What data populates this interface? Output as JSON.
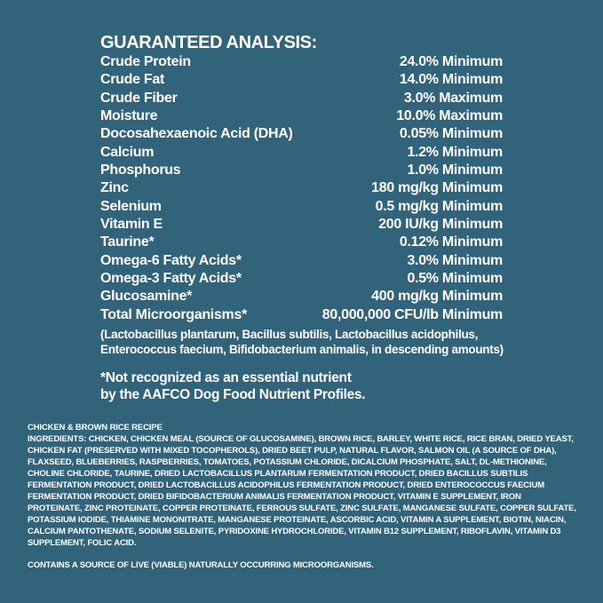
{
  "colors": {
    "background": "#31637a",
    "text": "#ffffff"
  },
  "guaranteed_analysis": {
    "title": "GUARANTEED ANALYSIS:",
    "rows": [
      {
        "label": "Crude Protein",
        "value": "24.0% Minimum"
      },
      {
        "label": "Crude Fat",
        "value": "14.0% Minimum"
      },
      {
        "label": "Crude Fiber",
        "value": "3.0% Maximum"
      },
      {
        "label": "Moisture",
        "value": "10.0% Maximum"
      },
      {
        "label": "Docosahexaenoic Acid (DHA)",
        "value": "0.05% Minimum"
      },
      {
        "label": "Calcium",
        "value": "1.2% Minimum"
      },
      {
        "label": "Phosphorus",
        "value": "1.0% Minimum"
      },
      {
        "label": "Zinc",
        "value": "180 mg/kg Minimum"
      },
      {
        "label": "Selenium",
        "value": "0.5 mg/kg Minimum"
      },
      {
        "label": "Vitamin E",
        "value": "200 IU/kg Minimum"
      },
      {
        "label": "Taurine*",
        "value": "0.12% Minimum"
      },
      {
        "label": "Omega-6 Fatty Acids*",
        "value": "3.0% Minimum"
      },
      {
        "label": "Omega-3 Fatty Acids*",
        "value": "0.5% Minimum"
      },
      {
        "label": "Glucosamine*",
        "value": "400 mg/kg Minimum"
      },
      {
        "label": "Total Microorganisms*",
        "value": "80,000,000 CFU/lb Minimum"
      }
    ],
    "microorganisms_note_lines": [
      "(Lactobacillus plantarum, Bacillus subtilis, Lactobacillus acidophilus,",
      "Enterococcus faecium, Bifidobacterium animalis, in descending amounts)"
    ],
    "footnote_lines": [
      "*Not recognized as an essential nutrient",
      "by the AAFCO Dog Food Nutrient Profiles."
    ]
  },
  "recipe": {
    "name": "CHICKEN & BROWN RICE RECIPE",
    "ingredients_label": "INGREDIENTS:",
    "ingredients": "CHICKEN, CHICKEN MEAL (SOURCE OF GLUCOSAMINE), BROWN RICE, BARLEY, WHITE RICE, RICE BRAN, DRIED YEAST, CHICKEN FAT (PRESERVED WITH MIXED TOCOPHEROLS), DRIED BEET PULP, NATURAL FLAVOR, SALMON OIL (A SOURCE OF DHA), FLAXSEED, BLUEBERRIES, RASPBERRIES, TOMATOES, POTASSIUM CHLORIDE, DICALCIUM PHOSPHATE, SALT, DL-METHIONINE, CHOLINE CHLORIDE, TAURINE, DRIED LACTOBACILLUS PLANTARUM FERMENTATION PRODUCT, DRIED BACILLUS SUBTILIS FERMENTATION PRODUCT, DRIED LACTOBACILLUS ACIDOPHILUS FERMENTATION PRODUCT, DRIED ENTEROCOCCUS FAECIUM FERMENTATION PRODUCT, DRIED BIFIDOBACTERIUM ANIMALIS FERMENTATION PRODUCT, VITAMIN E SUPPLEMENT, IRON PROTEINATE, ZINC PROTEINATE, COPPER PROTEINATE, FERROUS SULFATE, ZINC SULFATE, MANGANESE SULFATE, COPPER SULFATE, POTASSIUM IODIDE, THIAMINE MONONITRATE, MANGANESE PROTEINATE, ASCORBIC ACID, VITAMIN A SUPPLEMENT, BIOTIN, NIACIN, CALCIUM PANTOTHENATE, SODIUM SELENITE, PYRIDOXINE HYDROCHLORIDE, VITAMIN B12 SUPPLEMENT, RIBOFLAVIN, VITAMIN D3 SUPPLEMENT, FOLIC ACID.",
    "microorganisms_statement": "CONTAINS A SOURCE OF LIVE (VIABLE) NATURALLY OCCURRING MICROORGANISMS."
  }
}
